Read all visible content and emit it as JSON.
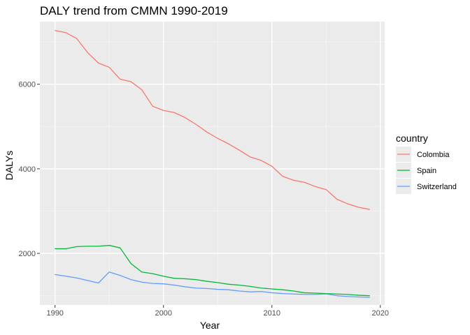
{
  "chart_data": {
    "type": "line",
    "title": "DALY trend from CMMN 1990-2019",
    "xlabel": "Year",
    "ylabel": "DALYs",
    "xlim": [
      1988.6,
      2020.4
    ],
    "ylim": [
      780,
      7480
    ],
    "x_ticks": [
      1990,
      2000,
      2010,
      2020
    ],
    "x_minor_ticks": [
      1995,
      2005,
      2015
    ],
    "y_ticks": [
      2000,
      4000,
      6000
    ],
    "y_minor_ticks": [
      1000,
      3000,
      5000,
      7000
    ],
    "x_tick_labels": [
      "1990",
      "2000",
      "2010",
      "2020"
    ],
    "y_tick_labels": [
      "2000",
      "4000",
      "6000"
    ],
    "grid": true,
    "legend": {
      "title": "country",
      "placement": "right"
    },
    "x": [
      1990,
      1991,
      1992,
      1993,
      1994,
      1995,
      1996,
      1997,
      1998,
      1999,
      2000,
      2001,
      2002,
      2003,
      2004,
      2005,
      2006,
      2007,
      2008,
      2009,
      2010,
      2011,
      2012,
      2013,
      2014,
      2015,
      2016,
      2017,
      2018,
      2019
    ],
    "series": [
      {
        "name": "Colombia",
        "color": "#F8766D",
        "values": [
          7270,
          7220,
          7080,
          6750,
          6500,
          6400,
          6120,
          6060,
          5870,
          5480,
          5380,
          5330,
          5210,
          5050,
          4870,
          4720,
          4590,
          4440,
          4280,
          4200,
          4060,
          3820,
          3730,
          3680,
          3580,
          3510,
          3280,
          3170,
          3090,
          3040
        ]
      },
      {
        "name": "Spain",
        "color": "#00BA38",
        "values": [
          2110,
          2110,
          2160,
          2170,
          2170,
          2190,
          2130,
          1760,
          1560,
          1520,
          1460,
          1410,
          1400,
          1380,
          1340,
          1310,
          1270,
          1250,
          1220,
          1180,
          1160,
          1140,
          1110,
          1070,
          1060,
          1050,
          1040,
          1030,
          1010,
          1000
        ]
      },
      {
        "name": "Switzerland",
        "color": "#619CFF",
        "values": [
          1500,
          1460,
          1420,
          1360,
          1300,
          1560,
          1480,
          1380,
          1320,
          1290,
          1280,
          1250,
          1210,
          1180,
          1170,
          1150,
          1140,
          1110,
          1090,
          1100,
          1070,
          1050,
          1040,
          1030,
          1030,
          1040,
          1000,
          980,
          970,
          960
        ]
      }
    ],
    "colors": {
      "panel_background": "#EBEBEB",
      "grid_major": "#FFFFFF",
      "grid_minor": "#F5F5F5",
      "legend_key_background": "#EBEBEB"
    }
  }
}
